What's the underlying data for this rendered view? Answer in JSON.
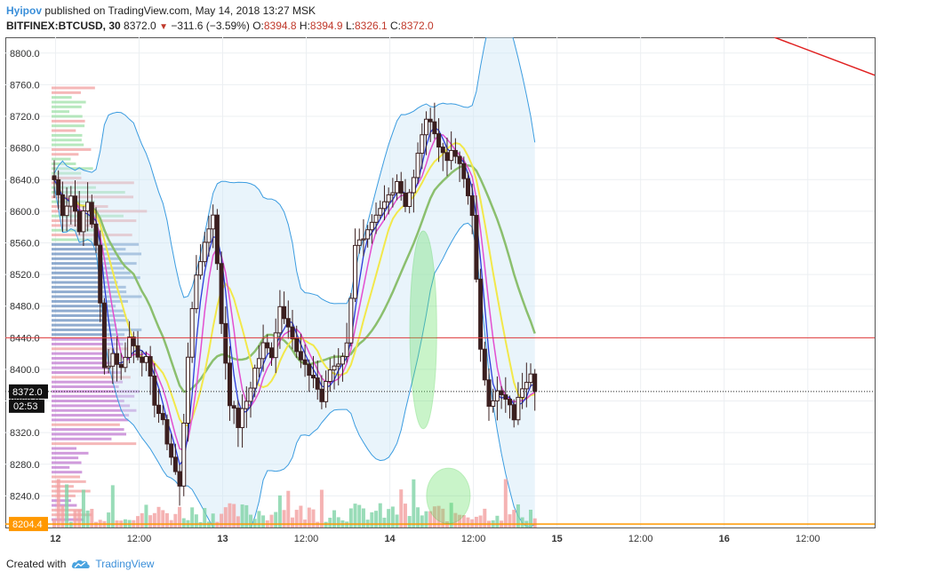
{
  "header": {
    "author": "Hyipov",
    "published_text": "published on TradingView.com, May 14, 2018 13:27 MSK",
    "symbol": "BITFINEX:BTCUSD, 30",
    "price": "8372.0",
    "change": "−311.6 (−3.59%)",
    "ohlc": {
      "o_label": "O:",
      "o": "8394.8",
      "h_label": "H:",
      "h": "8394.9",
      "l_label": "L:",
      "l": "8326.1",
      "c_label": "C:",
      "c": "8372.0"
    }
  },
  "footer": {
    "created_with": "Created with",
    "brand": "TradingView",
    "brand_icon": "cloud-logo-icon"
  },
  "colors": {
    "up_volume": "#7fd3a6",
    "down_volume": "#f2a0a0",
    "candle": "#3b1f1f",
    "bollinger": "#3b9ce0",
    "ma_fast": "#2b3bd8",
    "ma_mid": "#e34fd0",
    "ma_yellow": "#f2e84a",
    "ma_slow": "#8bbf6e",
    "resistance": "#e03a3a",
    "support": "#ff9800",
    "ellipse": "#66e066"
  },
  "chart_data": {
    "type": "candlestick",
    "symbol": "BITFINEX:BTCUSD",
    "interval": "30",
    "ylim": [
      8200,
      8820
    ],
    "y_ticks": [
      8240,
      8280,
      8320,
      8360,
      8400,
      8440,
      8480,
      8520,
      8560,
      8600,
      8640,
      8680,
      8720,
      8760,
      8800
    ],
    "y_tick_labels": [
      "8240.0",
      "8280.0",
      "8320.0",
      "8360.0",
      "8400.0",
      "8440.0",
      "8480.0",
      "8520.0",
      "8560.0",
      "8600.0",
      "8640.0",
      "8680.0",
      "8720.0",
      "8760.0",
      "8800.0"
    ],
    "x_ticks": [
      {
        "t": 6,
        "label": "12"
      },
      {
        "t": 16,
        "label": "12:00"
      },
      {
        "t": 26,
        "label": "13"
      },
      {
        "t": 36,
        "label": "12:00"
      },
      {
        "t": 46,
        "label": "14"
      },
      {
        "t": 56,
        "label": "12:00"
      },
      {
        "t": 66,
        "label": "15"
      },
      {
        "t": 76,
        "label": "12:00"
      },
      {
        "t": 86,
        "label": "16"
      },
      {
        "t": 96,
        "label": "12:00"
      }
    ],
    "x_range_hours": [
      0,
      104
    ],
    "grid": true,
    "price_line": {
      "value": 8372.0,
      "label": "8372.0",
      "countdown": "02:53"
    },
    "horizontal_lines": [
      {
        "name": "resistance",
        "value": 8440
      },
      {
        "name": "support",
        "value": 8204.4,
        "label": "8204.4"
      }
    ],
    "trend_line": {
      "from": {
        "t": 92,
        "price": 8820
      },
      "to": {
        "t": 104,
        "price": 8772
      }
    },
    "keypoints": [
      {
        "t": 0,
        "p": 8640
      },
      {
        "t": 1,
        "p": 8600
      },
      {
        "t": 2,
        "p": 8620
      },
      {
        "t": 3,
        "p": 8580
      },
      {
        "t": 4,
        "p": 8610
      },
      {
        "t": 5,
        "p": 8560
      },
      {
        "t": 6,
        "p": 8400
      },
      {
        "t": 7,
        "p": 8420
      },
      {
        "t": 8,
        "p": 8400
      },
      {
        "t": 9,
        "p": 8440
      },
      {
        "t": 10,
        "p": 8420
      },
      {
        "t": 11,
        "p": 8410
      },
      {
        "t": 12,
        "p": 8360
      },
      {
        "t": 13,
        "p": 8330
      },
      {
        "t": 14,
        "p": 8290
      },
      {
        "t": 15,
        "p": 8250
      },
      {
        "t": 16,
        "p": 8420
      },
      {
        "t": 17,
        "p": 8520
      },
      {
        "t": 18,
        "p": 8560
      },
      {
        "t": 19,
        "p": 8600
      },
      {
        "t": 20,
        "p": 8460
      },
      {
        "t": 21,
        "p": 8360
      },
      {
        "t": 22,
        "p": 8330
      },
      {
        "t": 23,
        "p": 8360
      },
      {
        "t": 24,
        "p": 8400
      },
      {
        "t": 25,
        "p": 8430
      },
      {
        "t": 26,
        "p": 8420
      },
      {
        "t": 27,
        "p": 8480
      },
      {
        "t": 28,
        "p": 8460
      },
      {
        "t": 29,
        "p": 8420
      },
      {
        "t": 30,
        "p": 8400
      },
      {
        "t": 31,
        "p": 8390
      },
      {
        "t": 32,
        "p": 8360
      },
      {
        "t": 33,
        "p": 8400
      },
      {
        "t": 34,
        "p": 8410
      },
      {
        "t": 35,
        "p": 8430
      },
      {
        "t": 36,
        "p": 8560
      },
      {
        "t": 37,
        "p": 8560
      },
      {
        "t": 38,
        "p": 8580
      },
      {
        "t": 39,
        "p": 8600
      },
      {
        "t": 40,
        "p": 8620
      },
      {
        "t": 41,
        "p": 8640
      },
      {
        "t": 42,
        "p": 8610
      },
      {
        "t": 43,
        "p": 8640
      },
      {
        "t": 44,
        "p": 8700
      },
      {
        "t": 45,
        "p": 8720
      },
      {
        "t": 46,
        "p": 8680
      },
      {
        "t": 47,
        "p": 8670
      },
      {
        "t": 48,
        "p": 8670
      },
      {
        "t": 49,
        "p": 8640
      },
      {
        "t": 50,
        "p": 8600
      },
      {
        "t": 51,
        "p": 8420
      },
      {
        "t": 52,
        "p": 8360
      },
      {
        "t": 53,
        "p": 8370
      },
      {
        "t": 54,
        "p": 8360
      },
      {
        "t": 55,
        "p": 8340
      },
      {
        "t": 56,
        "p": 8380
      },
      {
        "t": 57,
        "p": 8400
      },
      {
        "t": 57.5,
        "p": 8372
      }
    ],
    "annotations": [
      {
        "type": "ellipse",
        "t": 50,
        "price": 8450,
        "rt": 1.6,
        "rprice": 250
      },
      {
        "type": "ellipse",
        "t": 53,
        "price": 8240,
        "rt": 2.6,
        "rprice": 70
      }
    ]
  }
}
